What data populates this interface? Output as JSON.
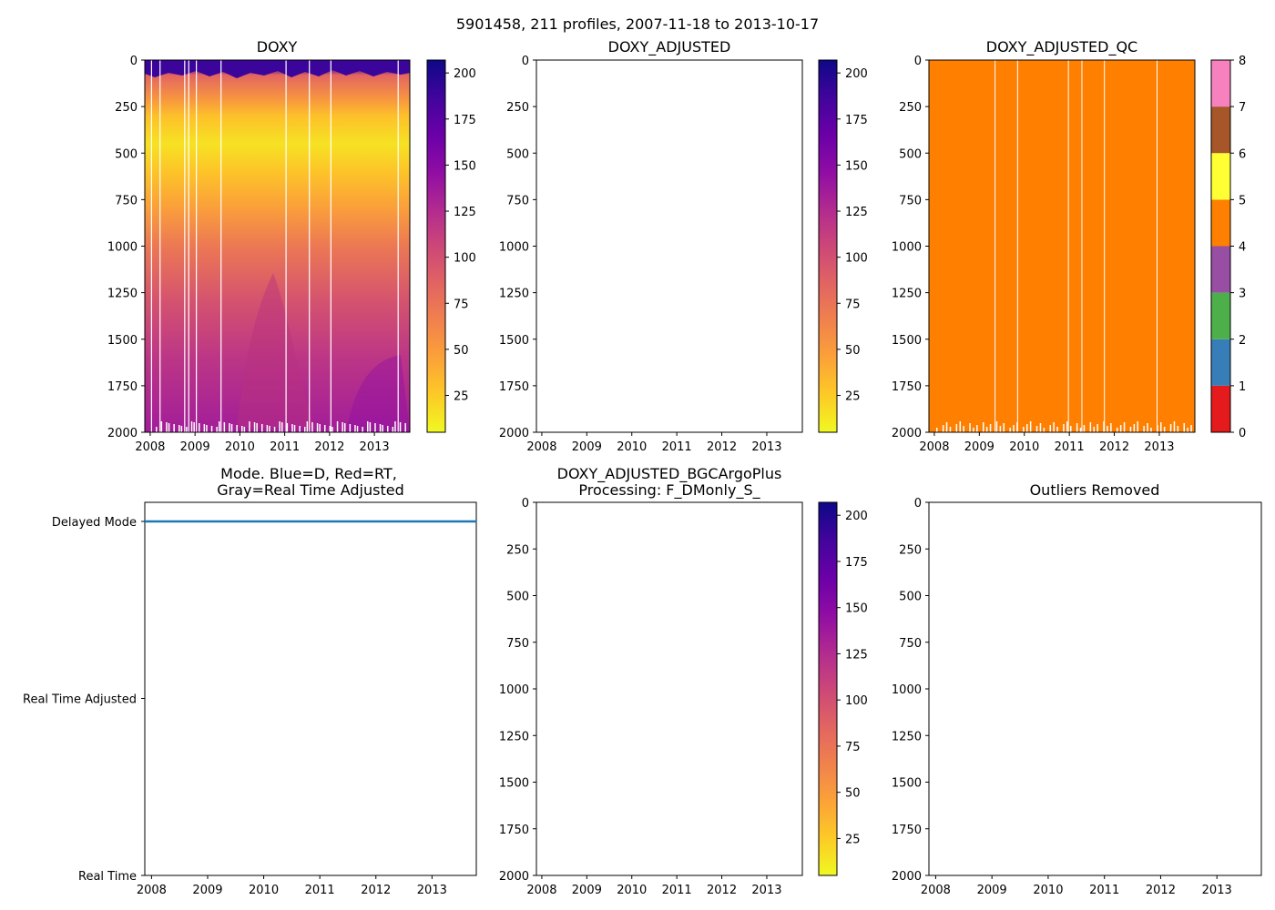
{
  "figure": {
    "title": "5901458, 211 profiles, 2007-11-18 to 2013-10-17"
  },
  "colors": {
    "qc": [
      "#e41a1c",
      "#377eb8",
      "#4daf4a",
      "#984ea3",
      "#ff7f00",
      "#ffff33",
      "#a65628",
      "#f781bf",
      "#999999"
    ],
    "mode_line": "#1f77b4"
  },
  "chart_data": [
    {
      "id": "doxy",
      "type": "heatmap",
      "title": "DOXY",
      "xlabel": "",
      "ylabel": "",
      "x_ticks": [
        "2008",
        "2009",
        "2010",
        "2011",
        "2012",
        "2013"
      ],
      "x_range": [
        2007.88,
        2013.79
      ],
      "y_ticks": [
        0,
        250,
        500,
        750,
        1000,
        1250,
        1500,
        1750,
        2000
      ],
      "y_range": [
        2000,
        0
      ],
      "colorbar": {
        "cmap": "plasma_r",
        "range": [
          5,
          207
        ],
        "ticks": [
          25,
          50,
          75,
          100,
          125,
          150,
          175,
          200
        ]
      },
      "depth_profile": [
        {
          "depth": 0,
          "value": 200
        },
        {
          "depth": 40,
          "value": 190
        },
        {
          "depth": 80,
          "value": 85
        },
        {
          "depth": 200,
          "value": 55
        },
        {
          "depth": 300,
          "value": 30
        },
        {
          "depth": 450,
          "value": 15
        },
        {
          "depth": 600,
          "value": 28
        },
        {
          "depth": 800,
          "value": 48
        },
        {
          "depth": 1000,
          "value": 72
        },
        {
          "depth": 1300,
          "value": 98
        },
        {
          "depth": 1600,
          "value": 118
        },
        {
          "depth": 2000,
          "value": 135
        }
      ],
      "gaps_year": [
        2008.03,
        2008.22,
        2008.77,
        2008.86,
        2009.03,
        2009.58,
        2011.03,
        2011.55,
        2012.03,
        2013.53
      ]
    },
    {
      "id": "doxy_adjusted",
      "type": "heatmap",
      "title": "DOXY_ADJUSTED",
      "x_ticks": [
        "2008",
        "2009",
        "2010",
        "2011",
        "2012",
        "2013"
      ],
      "x_range": [
        2007.88,
        2013.79
      ],
      "y_ticks": [
        0,
        250,
        500,
        750,
        1000,
        1250,
        1500,
        1750,
        2000
      ],
      "y_range": [
        2000,
        0
      ],
      "colorbar": {
        "cmap": "plasma_r",
        "range": [
          5,
          207
        ],
        "ticks": [
          25,
          50,
          75,
          100,
          125,
          150,
          175,
          200
        ]
      },
      "values": []
    },
    {
      "id": "doxy_adjusted_qc",
      "type": "heatmap",
      "title": "DOXY_ADJUSTED_QC",
      "x_ticks": [
        "2008",
        "2009",
        "2010",
        "2011",
        "2012",
        "2013"
      ],
      "x_range": [
        2007.88,
        2013.79
      ],
      "y_ticks": [
        0,
        250,
        500,
        750,
        1000,
        1250,
        1500,
        1750,
        2000
      ],
      "y_range": [
        2000,
        0
      ],
      "qc_value": 4,
      "colorbar": {
        "cmap": "qc",
        "range": [
          0,
          8
        ],
        "ticks": [
          0,
          1,
          2,
          3,
          4,
          5,
          6,
          7,
          8
        ]
      },
      "gaps_year": [
        2009.35,
        2009.85,
        2010.98,
        2011.28,
        2011.78,
        2012.95
      ]
    },
    {
      "id": "mode",
      "type": "line",
      "title_lines": [
        "Mode. Blue=D, Red=RT,",
        "Gray=Real Time Adjusted"
      ],
      "x_ticks": [
        "2008",
        "2009",
        "2010",
        "2011",
        "2012",
        "2013"
      ],
      "x_range": [
        2007.88,
        2013.79
      ],
      "y_categories": [
        "Delayed Mode",
        "Real Time Adjusted",
        "Real Time"
      ],
      "y_levels": [
        3,
        2,
        1
      ],
      "series": [
        {
          "name": "Delayed Mode",
          "value": 3,
          "x_start": 2007.88,
          "x_end": 2013.79
        }
      ]
    },
    {
      "id": "bgc",
      "type": "heatmap",
      "title_lines": [
        "DOXY_ADJUSTED_BGCArgoPlus",
        "Processing: F_DMonly_S_"
      ],
      "x_ticks": [
        "2008",
        "2009",
        "2010",
        "2011",
        "2012",
        "2013"
      ],
      "x_range": [
        2007.88,
        2013.79
      ],
      "y_ticks": [
        0,
        250,
        500,
        750,
        1000,
        1250,
        1500,
        1750,
        2000
      ],
      "y_range": [
        2000,
        0
      ],
      "colorbar": {
        "cmap": "plasma_r",
        "range": [
          5,
          207
        ],
        "ticks": [
          25,
          50,
          75,
          100,
          125,
          150,
          175,
          200
        ]
      },
      "values": []
    },
    {
      "id": "outliers",
      "type": "heatmap",
      "title": "Outliers Removed",
      "x_ticks": [
        "2008",
        "2009",
        "2010",
        "2011",
        "2012",
        "2013"
      ],
      "x_range": [
        2007.88,
        2013.79
      ],
      "y_ticks": [
        0,
        250,
        500,
        750,
        1000,
        1250,
        1500,
        1750,
        2000
      ],
      "y_range": [
        2000,
        0
      ],
      "values": []
    }
  ]
}
